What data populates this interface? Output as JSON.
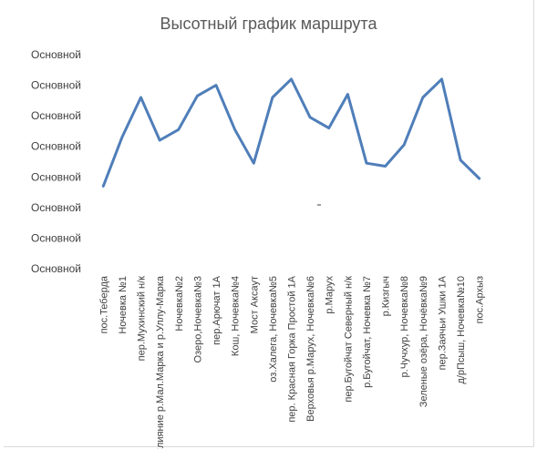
{
  "chart_data": {
    "type": "line",
    "title": "Высотный график маршрута",
    "xlabel": "",
    "ylabel": "",
    "ylim": [
      0,
      7
    ],
    "y_tick_labels": [
      "Основной",
      "Основной",
      "Основной",
      "Основной",
      "Основной",
      "Основной",
      "Основной",
      "Основной"
    ],
    "categories": [
      "пос.Теберда",
      "Ночевка №1",
      "пер.Мухинский н/к",
      "Слияние р.Мал.Марка и р.Уллу-Марка",
      "Ночевка№2",
      "Озеро,Ночевка№3",
      "пер.Арючат 1А",
      "Кош, Ночевка№4",
      "Мост Аксаут",
      "оз.Халега, Ночевка№5",
      "пер. Красная Горка Простой 1А",
      "Верховья р.Марух, Ночевка№6",
      "р.Марух",
      "пер.Бугойчат Северный н/к",
      "р.Бугойчат, Ночевка №7",
      "р.Кизгыч",
      "р.Чучхур, Ночевка№8",
      "Зеленые озёра, Ночёвка№9",
      "пер.Заячьи Ушки 1А",
      "д/рПсыш, Ночевка№10",
      "пос.Архыз"
    ],
    "series": [
      {
        "values": [
          2.7,
          4.3,
          5.6,
          4.2,
          4.55,
          5.65,
          6.0,
          4.55,
          3.45,
          5.6,
          6.2,
          4.95,
          4.6,
          5.7,
          3.45,
          3.35,
          4.05,
          5.6,
          6.2,
          3.55,
          2.95
        ],
        "color": "#4f7eb9"
      }
    ],
    "grid": false,
    "legend": "none"
  }
}
